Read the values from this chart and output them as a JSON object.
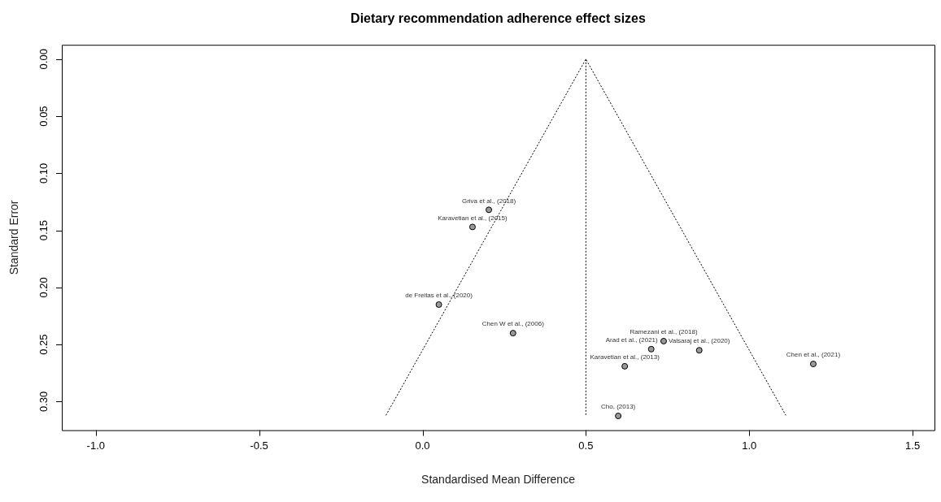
{
  "chart_data": {
    "type": "scatter",
    "title": "Dietary recommendation adherence effect sizes",
    "xlabel": "Standardised Mean Difference",
    "ylabel": "Standard Error",
    "series": [
      {
        "type": "line",
        "color": "#000000",
        "line_style": "dotted",
        "marker": "none",
        "x": [
          -0.112,
          0.5,
          1.112
        ],
        "values": [
          0.312,
          0,
          0.312
        ]
      },
      {
        "type": "scatter",
        "color": "#999999",
        "marker": "circle",
        "x": [
          0.203,
          0.153,
          0.05,
          0.277,
          0.738,
          0.7,
          0.847,
          0.619,
          1.196,
          0.599
        ],
        "values": [
          0.132,
          0.147,
          0.215,
          0.24,
          0.247,
          0.254,
          0.255,
          0.269,
          0.267,
          0.3125
        ]
      }
    ],
    "annotations": [
      {
        "text": "Griva et al., (2018)",
        "x": 0.203,
        "y": 0.132
      },
      {
        "text": "Karavetian et al., (2015)",
        "x": 0.153,
        "y": 0.147
      },
      {
        "text": "de Freitas et al., (2020)",
        "x": 0.05,
        "y": 0.215
      },
      {
        "text": "Chen W et al., (2006)",
        "x": 0.277,
        "y": 0.24
      },
      {
        "text": "Ramezani et al., (2018)",
        "x": 0.738,
        "y": 0.247
      },
      {
        "text": "Arad et al., (2021)",
        "x": 0.7,
        "y": 0.254
      },
      {
        "text": "Valsaraj et al., (2020)",
        "x": 0.847,
        "y": 0.255
      },
      {
        "text": "Karavetian et al., (2013)",
        "x": 0.619,
        "y": 0.269
      },
      {
        "text": "Chen et al., (2021)",
        "x": 1.196,
        "y": 0.267
      },
      {
        "text": "Cho, (2013)",
        "x": 0.599,
        "y": 0.3125
      }
    ],
    "xlim": [
      -1.104,
      1.567
    ],
    "xticks": [
      {
        "value": -1,
        "label": "-1.0"
      },
      {
        "value": -0.5,
        "label": "-0.5"
      },
      {
        "value": 0,
        "label": "0.0"
      },
      {
        "value": 0.5,
        "label": "0.5"
      },
      {
        "value": 1,
        "label": "1.0"
      },
      {
        "value": 1.5,
        "label": "1.5"
      }
    ],
    "ylim": [
      0.325,
      -0.0125
    ],
    "yticks": [
      {
        "value": 0,
        "label": "0.00"
      },
      {
        "value": 0.05,
        "label": "0.05"
      },
      {
        "value": 0.1,
        "label": "0.10"
      },
      {
        "value": 0.15,
        "label": "0.15"
      },
      {
        "value": 0.2,
        "label": "0.20"
      },
      {
        "value": 0.25,
        "label": "0.25"
      },
      {
        "value": 0.3,
        "label": "0.30"
      }
    ],
    "ref_lines": [
      {
        "axis": "x",
        "value": 0.5,
        "color": "#000000",
        "line_style": "dotted"
      }
    ],
    "grid": false,
    "legend": false
  }
}
